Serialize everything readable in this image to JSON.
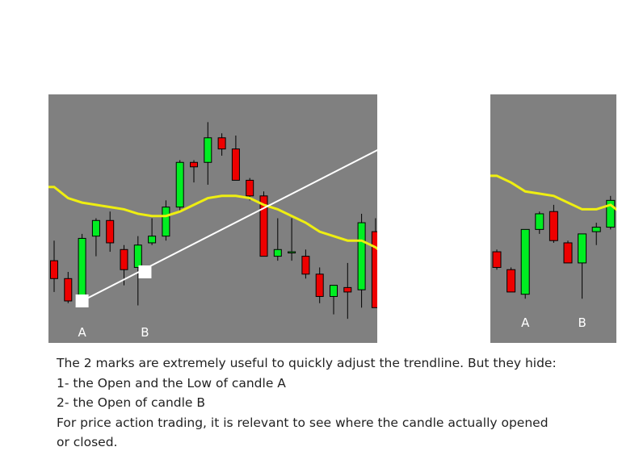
{
  "chart_data": [
    {
      "type": "candlestick",
      "title": "",
      "xlabel": "",
      "ylabel": "",
      "ylim": [
        0,
        100
      ],
      "grid": false,
      "colors": {
        "background": "#808080",
        "bullish": "#00ee22",
        "bearish": "#ee0000",
        "moving_average": "#eeee11",
        "trendline": "#ffffff",
        "marker": "#ffffff"
      },
      "candles": [
        {
          "o": 31,
          "h": 40,
          "l": 17,
          "c": 23
        },
        {
          "o": 23,
          "h": 26,
          "l": 12,
          "c": 13
        },
        {
          "o": 13,
          "h": 43,
          "l": 12,
          "c": 41
        },
        {
          "o": 42,
          "h": 50,
          "l": 33,
          "c": 49
        },
        {
          "o": 49,
          "h": 53,
          "l": 35,
          "c": 39
        },
        {
          "o": 36,
          "h": 38,
          "l": 20,
          "c": 27
        },
        {
          "o": 28,
          "h": 42,
          "l": 11,
          "c": 38
        },
        {
          "o": 39,
          "h": 50,
          "l": 38,
          "c": 42
        },
        {
          "o": 42,
          "h": 58,
          "l": 40,
          "c": 55
        },
        {
          "o": 55,
          "h": 76,
          "l": 53,
          "c": 75
        },
        {
          "o": 75,
          "h": 76,
          "l": 66,
          "c": 73
        },
        {
          "o": 75,
          "h": 93,
          "l": 65,
          "c": 86
        },
        {
          "o": 86,
          "h": 88,
          "l": 78,
          "c": 81
        },
        {
          "o": 81,
          "h": 87,
          "l": 67,
          "c": 67
        },
        {
          "o": 67,
          "h": 68,
          "l": 58,
          "c": 60
        },
        {
          "o": 60,
          "h": 62,
          "l": 33,
          "c": 33
        },
        {
          "o": 33,
          "h": 50,
          "l": 31,
          "c": 36
        },
        {
          "o": 35,
          "h": 50,
          "l": 31,
          "c": 35
        },
        {
          "o": 33,
          "h": 36,
          "l": 23,
          "c": 25
        },
        {
          "o": 25,
          "h": 28,
          "l": 12,
          "c": 15
        },
        {
          "o": 15,
          "h": 20,
          "l": 7,
          "c": 20
        },
        {
          "o": 19,
          "h": 30,
          "l": 5,
          "c": 17
        },
        {
          "o": 18,
          "h": 52,
          "l": 10,
          "c": 48
        },
        {
          "o": 44,
          "h": 50,
          "l": 10,
          "c": 10
        }
      ],
      "moving_average": [
        64,
        59,
        57,
        56,
        55,
        54,
        52,
        51,
        51,
        53,
        56,
        59,
        60,
        60,
        59,
        56,
        54,
        51,
        48,
        44,
        42,
        40,
        40,
        37
      ],
      "trendline": {
        "from": {
          "candle": 2,
          "value": 13
        },
        "to": {
          "candle": 23.6,
          "value": 82
        }
      },
      "markers": [
        {
          "label": "A",
          "candle": 2,
          "value": 13
        },
        {
          "label": "B",
          "candle": 6.5,
          "value": 26
        }
      ]
    },
    {
      "type": "candlestick",
      "title": "",
      "xlabel": "",
      "ylabel": "",
      "ylim": [
        0,
        100
      ],
      "grid": false,
      "candles": [
        {
          "o": 35,
          "h": 36,
          "l": 27,
          "c": 28
        },
        {
          "o": 27,
          "h": 28,
          "l": 17,
          "c": 17
        },
        {
          "o": 16,
          "h": 45,
          "l": 14,
          "c": 45
        },
        {
          "o": 45,
          "h": 53,
          "l": 43,
          "c": 52
        },
        {
          "o": 53,
          "h": 56,
          "l": 39,
          "c": 40
        },
        {
          "o": 39,
          "h": 40,
          "l": 30,
          "c": 30
        },
        {
          "o": 30,
          "h": 43,
          "l": 14,
          "c": 43
        },
        {
          "o": 44,
          "h": 48,
          "l": 38,
          "c": 46
        },
        {
          "o": 46,
          "h": 60,
          "l": 45,
          "c": 58
        }
      ],
      "moving_average": [
        69,
        66,
        62,
        61,
        60,
        57,
        54,
        54,
        56
      ],
      "labels": [
        {
          "label": "A",
          "candle": 2
        },
        {
          "label": "B",
          "candle": 6
        }
      ]
    }
  ],
  "caption": {
    "lines": [
      "The 2 marks are extremely useful to quickly adjust the trendline. But they hide:",
      "1- the Open and the Low of candle A",
      "2- the Open of candle B",
      "For price action trading, it is relevant to see where the candle actually opened",
      "or closed."
    ]
  }
}
